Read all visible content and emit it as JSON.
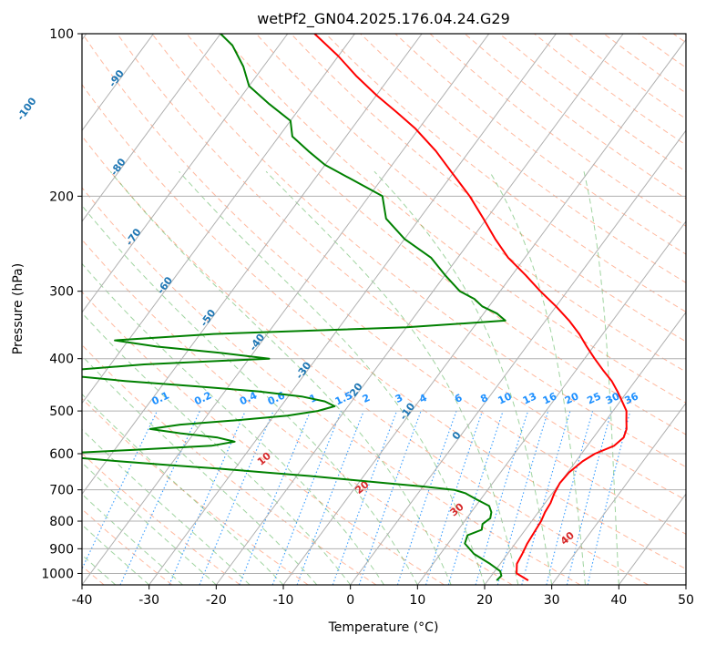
{
  "chart_data": {
    "type": "line",
    "title": "wetPf2_GN04.2025.176.04.24.G29",
    "xlabel": "Temperature (°C)",
    "ylabel": "Pressure (hPa)",
    "xlim": [
      -40,
      50
    ],
    "ylim": [
      1050,
      100
    ],
    "y_scale": "log",
    "grid": true,
    "x_ticks": [
      "-40",
      "-30",
      "-20",
      "-10",
      "0",
      "10",
      "20",
      "30",
      "40",
      "50"
    ],
    "y_ticks": [
      "100",
      "200",
      "300",
      "400",
      "500",
      "600",
      "700",
      "800",
      "900",
      "1000"
    ],
    "isotherm_labels": [
      "-100",
      "-90",
      "-80",
      "-70",
      "-60",
      "-50",
      "-40",
      "-30",
      "-20",
      "-10",
      "0"
    ],
    "mixing_ratio_labels": [
      "0.1",
      "0.2",
      "0.4",
      "0.6",
      "1",
      "1.5",
      "2",
      "3",
      "4",
      "6",
      "8",
      "10",
      "13",
      "16",
      "20",
      "25",
      "30",
      "36"
    ],
    "dry_adiabat_labels": [
      "10",
      "20",
      "30",
      "40"
    ],
    "colors": {
      "temperature": "#ff0000",
      "dewpoint": "#008000",
      "dry_adiabat": "#ff7f50",
      "moist_adiabat": "#2ca02c",
      "mixing_ratio": "#1e90ff",
      "isotherm_label": "#1f77b4",
      "grid": "#b0b0b0"
    },
    "series": [
      {
        "key": "temperature",
        "pressure": [
          1030,
          1000,
          960,
          920,
          880,
          840,
          800,
          770,
          740,
          710,
          680,
          650,
          620,
          600,
          580,
          560,
          540,
          520,
          500,
          480,
          460,
          440,
          420,
          400,
          380,
          360,
          340,
          320,
          300,
          280,
          260,
          240,
          220,
          200,
          180,
          165,
          150,
          140,
          130,
          120,
          110,
          100
        ],
        "temperature": [
          26,
          23.5,
          22.5,
          22.2,
          21.8,
          21.6,
          21.4,
          21.0,
          20.8,
          20.3,
          20.0,
          20.2,
          21.0,
          22.0,
          24.0,
          24.5,
          24.0,
          23.0,
          22.0,
          20.3,
          18.5,
          16.5,
          14.0,
          11.5,
          9.0,
          6.5,
          3.5,
          0.0,
          -4.0,
          -8.0,
          -12.5,
          -16.5,
          -20.5,
          -25.0,
          -30.5,
          -35.0,
          -40.5,
          -45.0,
          -50.0,
          -55.0,
          -60.0,
          -66.0
        ]
      },
      {
        "key": "dewpoint",
        "pressure": [
          1030,
          1010,
          990,
          960,
          920,
          880,
          850,
          830,
          810,
          790,
          770,
          750,
          730,
          710,
          700,
          690,
          680,
          670,
          660,
          650,
          640,
          630,
          620,
          610,
          600,
          590,
          580,
          570,
          560,
          550,
          540,
          530,
          520,
          510,
          500,
          490,
          480,
          470,
          460,
          450,
          440,
          430,
          420,
          410,
          400,
          390,
          380,
          370,
          360,
          350,
          340,
          330,
          320,
          310,
          300,
          280,
          260,
          240,
          220,
          200,
          185,
          175,
          165,
          155,
          145,
          135,
          125,
          115,
          105,
          100
        ],
        "dewpoint": [
          21.3,
          21.5,
          20.8,
          18.5,
          15.0,
          12.5,
          12.0,
          13.5,
          13.0,
          13.5,
          13.0,
          12.0,
          9.5,
          7.0,
          5.0,
          0.0,
          -6.0,
          -12.0,
          -18.0,
          -25.0,
          -32.0,
          -40.0,
          -48.0,
          -55.0,
          -58.0,
          -47.0,
          -36.0,
          -33.0,
          -36.0,
          -42.0,
          -47.0,
          -43.0,
          -35.0,
          -28.0,
          -24.0,
          -22.0,
          -24.0,
          -28.0,
          -35.0,
          -45.0,
          -56.0,
          -65.0,
          -65.0,
          -55.0,
          -37.0,
          -45.0,
          -55.0,
          -62.0,
          -48.0,
          -20.0,
          -6.0,
          -8.0,
          -11.0,
          -13.0,
          -16.0,
          -20.0,
          -24.0,
          -30.0,
          -35.0,
          -38.0,
          -45.0,
          -50.0,
          -54.0,
          -58.0,
          -60.0,
          -65.0,
          -70.0,
          -73.0,
          -77.0,
          -80.0
        ]
      }
    ]
  }
}
